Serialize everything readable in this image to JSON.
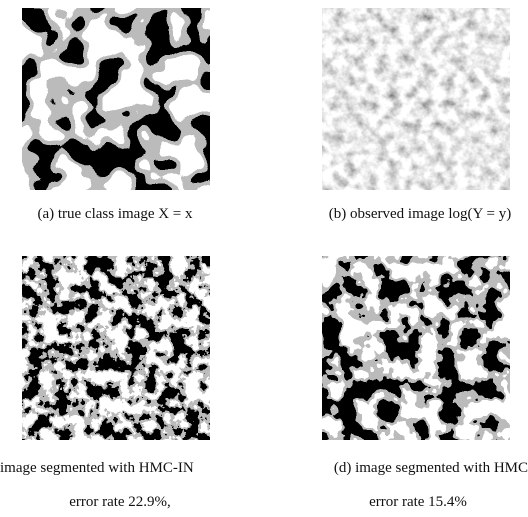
{
  "figure": {
    "panels": [
      {
        "caption": [
          "(a) true class image  X = x"
        ]
      },
      {
        "caption": [
          "(b) observed image  log(Y = y)"
        ]
      },
      {
        "caption": [
          "image segmented with HMC-IN",
          "error rate 22.9%,"
        ]
      },
      {
        "caption": [
          "(d) image segmented with HMC",
          "error rate 15.4%"
        ]
      }
    ]
  }
}
